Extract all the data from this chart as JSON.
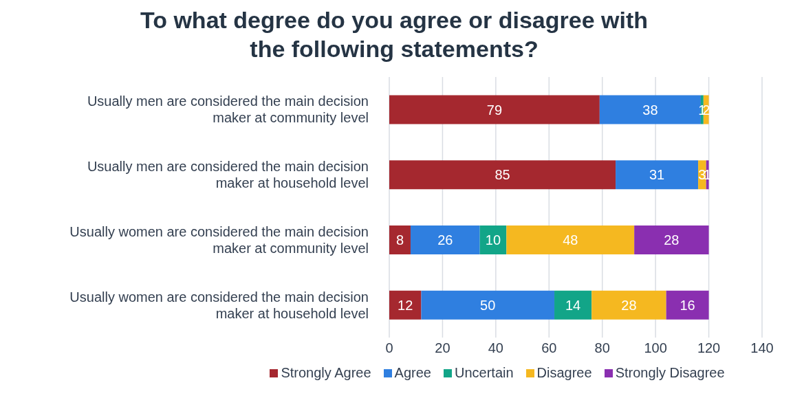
{
  "chart_data": {
    "type": "bar",
    "orientation": "horizontal",
    "stacked": true,
    "title": "To what degree do you agree or disagree with the following statements?",
    "categories": [
      "Usually men are considered the main decision maker at community level",
      "Usually men are considered the main decision maker at household level",
      "Usually women are considered the main decision maker at community level",
      "Usually women are considered the main decision maker at household level"
    ],
    "series": [
      {
        "name": "Strongly Agree",
        "color": "#a5282f",
        "values": [
          79,
          85,
          8,
          12
        ],
        "value_labels": [
          "79",
          "85",
          "8",
          "12"
        ]
      },
      {
        "name": "Agree",
        "color": "#2f7fe0",
        "values": [
          38,
          31,
          26,
          50
        ],
        "value_labels": [
          "38",
          "31",
          "26",
          "50"
        ]
      },
      {
        "name": "Uncertain",
        "color": "#12a588",
        "values": [
          1,
          0,
          10,
          14
        ],
        "value_labels": [
          "1",
          null,
          "10",
          "14"
        ]
      },
      {
        "name": "Disagree",
        "color": "#f5b820",
        "values": [
          2,
          3,
          48,
          28
        ],
        "value_labels": [
          "2",
          "3",
          "48",
          "28"
        ]
      },
      {
        "name": "Strongly Disagree",
        "color": "#8a2fb0",
        "values": [
          0,
          1,
          28,
          16
        ],
        "value_labels": [
          null,
          "1",
          "28",
          "16"
        ]
      }
    ],
    "xlim": [
      0,
      140
    ],
    "xticks": [
      0,
      20,
      40,
      60,
      80,
      100,
      120,
      140
    ],
    "grid": "x",
    "legend": "bottom"
  }
}
